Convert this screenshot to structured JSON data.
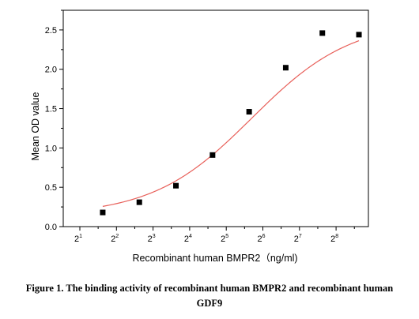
{
  "chart_data": {
    "type": "scatter",
    "xlabel": "Recombinant human  BMPR2（ng/ml)",
    "ylabel": "Mean OD value",
    "x_scale": "log2",
    "xlim": [
      1,
      9
    ],
    "ylim": [
      0,
      2.75
    ],
    "x_ticks": [
      {
        "base": "2",
        "exp": "1",
        "value": 1
      },
      {
        "base": "2",
        "exp": "2",
        "value": 2
      },
      {
        "base": "2",
        "exp": "3",
        "value": 3
      },
      {
        "base": "2",
        "exp": "4",
        "value": 4
      },
      {
        "base": "2",
        "exp": "5",
        "value": 5
      },
      {
        "base": "2",
        "exp": "6",
        "value": 6
      },
      {
        "base": "2",
        "exp": "7",
        "value": 7
      },
      {
        "base": "2",
        "exp": "8",
        "value": 8
      }
    ],
    "y_ticks": [
      "0.0",
      "0.5",
      "1.0",
      "1.5",
      "2.0",
      "2.5"
    ],
    "y_tick_values": [
      0,
      0.5,
      1.0,
      1.5,
      2.0,
      2.5
    ],
    "points": [
      {
        "x": 1.625,
        "y": 0.18
      },
      {
        "x": 2.625,
        "y": 0.31
      },
      {
        "x": 3.625,
        "y": 0.52
      },
      {
        "x": 4.625,
        "y": 0.91
      },
      {
        "x": 5.625,
        "y": 1.46
      },
      {
        "x": 6.625,
        "y": 2.02
      },
      {
        "x": 7.625,
        "y": 2.46
      },
      {
        "x": 8.625,
        "y": 2.44
      }
    ],
    "fit": {
      "type": "4PL",
      "bottom": 0.14,
      "top": 2.62,
      "log_ec50": 5.7,
      "slope": 0.32,
      "x_from": 1.625,
      "x_to": 8.625
    },
    "marker_color": "#000000",
    "fit_color": "#e8605a",
    "grid": false,
    "legend": "none"
  },
  "caption": {
    "line1": "Figure 1. The binding activity of recombinant human BMPR2 and recombinant human",
    "line2": "GDF9"
  }
}
